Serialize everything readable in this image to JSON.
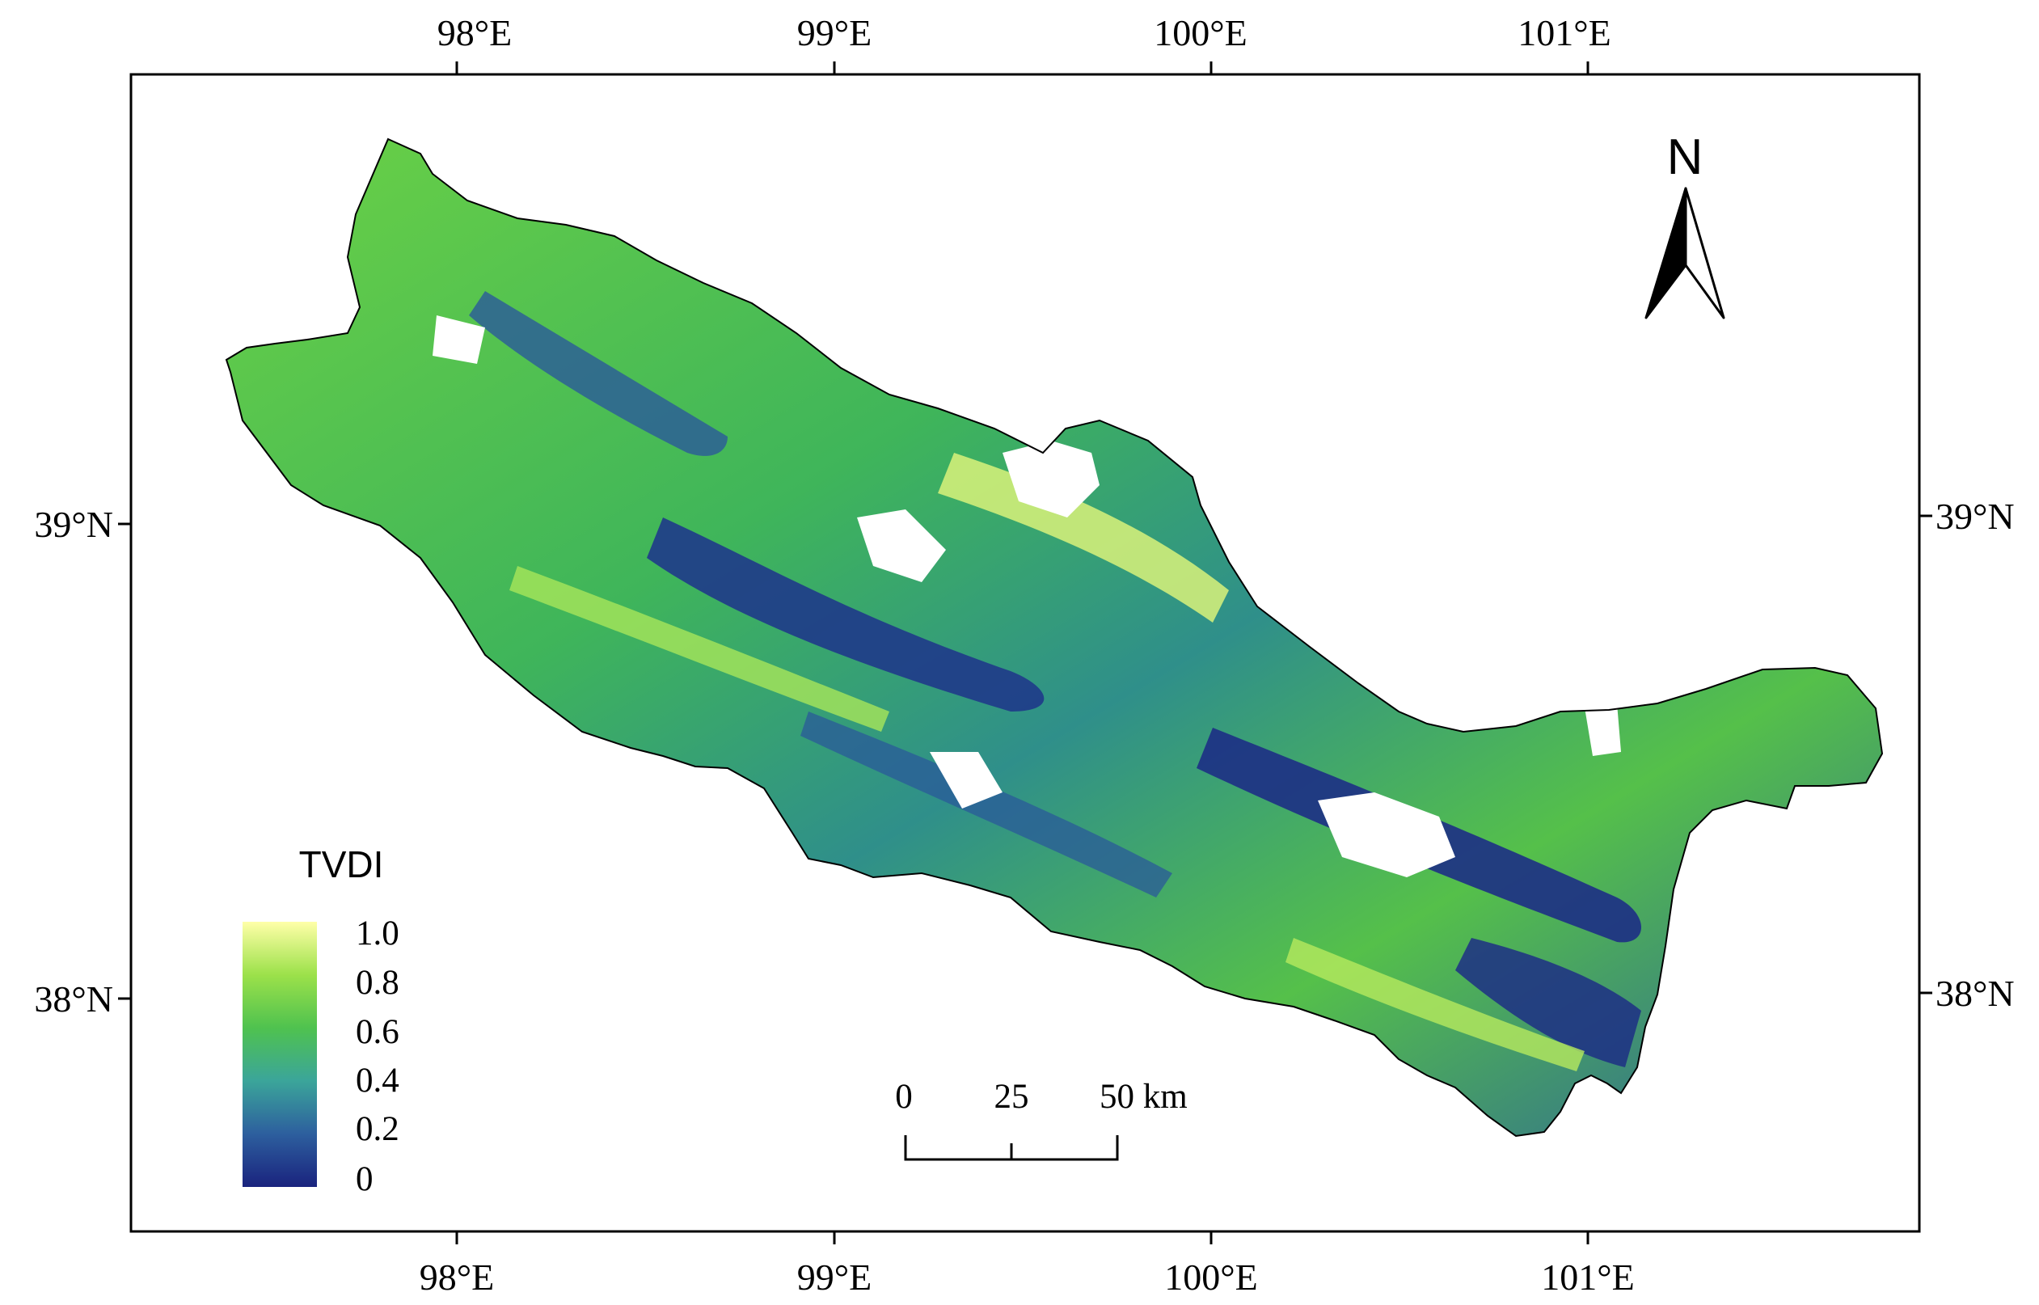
{
  "map": {
    "top_axis_labels": [
      "98°E",
      "99°E",
      "100°E",
      "101°E"
    ],
    "bottom_axis_labels": [
      "98°E",
      "99°E",
      "100°E",
      "101°E"
    ],
    "left_axis_labels": [
      "39°N",
      "38°N"
    ],
    "right_axis_labels": [
      "39°N",
      "38°N"
    ],
    "north_arrow": {
      "label": "N",
      "icon": "north-arrow-icon"
    },
    "legend": {
      "title": "TVDI",
      "labels": [
        "1.0",
        "0.8",
        "0.6",
        "0.4",
        "0.2",
        "0"
      ],
      "colors": [
        "#1a237e",
        "#2d5f9e",
        "#3ba59a",
        "#4fc24f",
        "#9ce14a",
        "#ffffa8"
      ]
    },
    "scale_bar": {
      "labels": [
        "0",
        "25",
        "50 km"
      ]
    }
  }
}
